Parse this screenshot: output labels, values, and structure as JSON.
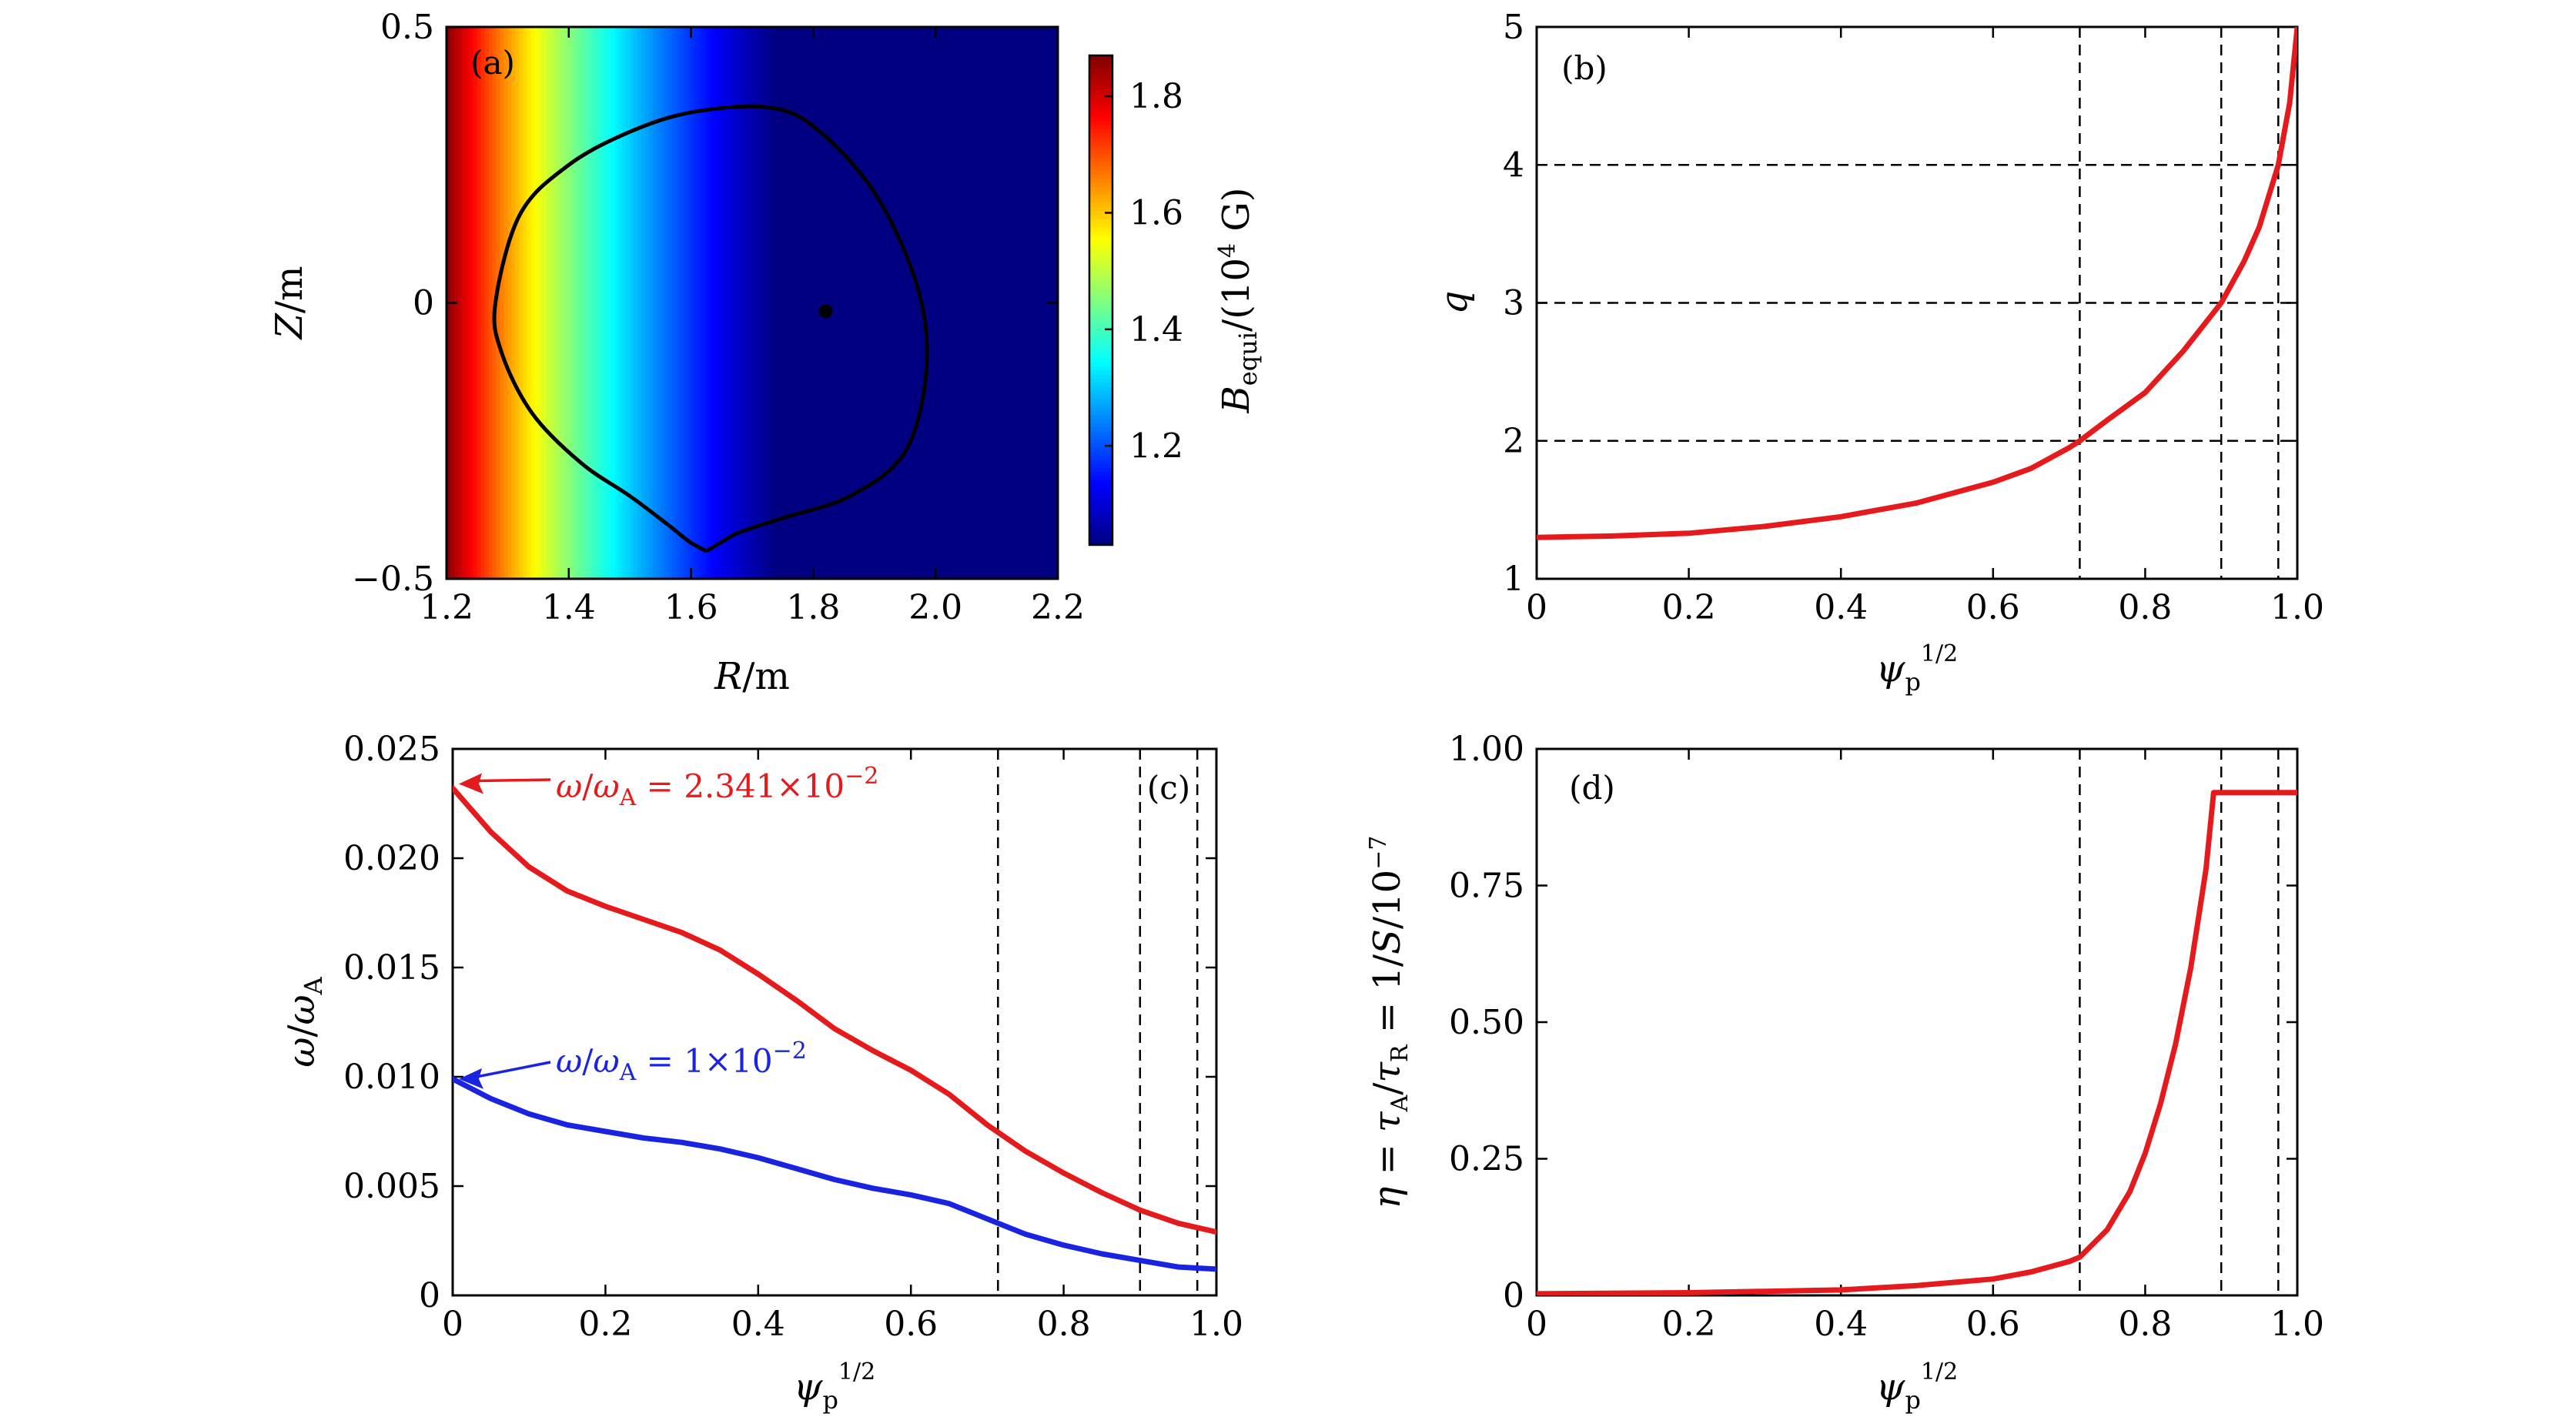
{
  "chart_data": [
    {
      "id": "a",
      "type": "heatmap",
      "panel_label": "(a)",
      "xlabel": "R/m",
      "ylabel": "Z/m",
      "xlim": [
        1.2,
        2.2
      ],
      "ylim": [
        -0.5,
        0.5
      ],
      "xticks": [
        "1.2",
        "1.4",
        "1.6",
        "1.8",
        "2.0",
        "2.2"
      ],
      "yticks": [
        "−0.5",
        "0",
        "0.5"
      ],
      "colorbar": {
        "label": "B_equi/(10^4 G)",
        "range": [
          1.03,
          1.87
        ],
        "ticks": [
          "1.2",
          "1.4",
          "1.6",
          "1.8"
        ]
      },
      "field_model": "B ≈ 1.865·(1.2/R)^1.6, varying with R only",
      "boundary": {
        "R": [
          1.625,
          1.67,
          1.75,
          1.86,
          1.95,
          1.985,
          1.97,
          1.9,
          1.8,
          1.72,
          1.6,
          1.5,
          1.4,
          1.32,
          1.28,
          1.29,
          1.34,
          1.42,
          1.5,
          1.56,
          1.6,
          1.625
        ],
        "Z": [
          -0.45,
          -0.42,
          -0.39,
          -0.35,
          -0.27,
          -0.12,
          0.03,
          0.2,
          0.32,
          0.355,
          0.345,
          0.31,
          0.25,
          0.16,
          0.0,
          -0.09,
          -0.2,
          -0.29,
          -0.35,
          -0.4,
          -0.435,
          -0.45
        ]
      },
      "magnetic_axis": {
        "R": 1.82,
        "Z": -0.015
      }
    },
    {
      "id": "b",
      "type": "line",
      "panel_label": "(b)",
      "xlabel": "ψ_p^{1/2}",
      "ylabel": "q",
      "xlim": [
        0,
        1
      ],
      "ylim": [
        1,
        5
      ],
      "xticks": [
        "0",
        "0.2",
        "0.4",
        "0.6",
        "0.8",
        "1.0"
      ],
      "yticks": [
        "1",
        "2",
        "3",
        "4",
        "5"
      ],
      "series": [
        {
          "name": "q",
          "color": "#e41a1c",
          "x": [
            0,
            0.1,
            0.2,
            0.3,
            0.4,
            0.5,
            0.6,
            0.65,
            0.7,
            0.714,
            0.75,
            0.8,
            0.85,
            0.9,
            0.93,
            0.95,
            0.975,
            0.99,
            1.0
          ],
          "y": [
            1.3,
            1.31,
            1.33,
            1.38,
            1.45,
            1.55,
            1.7,
            1.8,
            1.95,
            2.0,
            2.15,
            2.35,
            2.65,
            3.0,
            3.3,
            3.55,
            4.0,
            4.45,
            5.0
          ]
        }
      ],
      "vlines": [
        0.714,
        0.9,
        0.975
      ],
      "hlines": [
        2,
        3,
        4
      ]
    },
    {
      "id": "c",
      "type": "line",
      "panel_label": "(c)",
      "xlabel": "ψ_p^{1/2}",
      "ylabel": "ω/ω_A",
      "xlim": [
        0,
        1
      ],
      "ylim": [
        0,
        0.025
      ],
      "xticks": [
        "0",
        "0.2",
        "0.4",
        "0.6",
        "0.8",
        "1.0"
      ],
      "yticks": [
        "0",
        "0.005",
        "0.010",
        "0.015",
        "0.020",
        "0.025"
      ],
      "series": [
        {
          "name": "ω/ω_A = 2.341×10^−2",
          "color": "#e41a1c",
          "x": [
            0,
            0.05,
            0.1,
            0.15,
            0.2,
            0.25,
            0.3,
            0.35,
            0.4,
            0.45,
            0.5,
            0.55,
            0.6,
            0.65,
            0.7,
            0.75,
            0.8,
            0.85,
            0.9,
            0.95,
            1.0
          ],
          "y": [
            0.0232,
            0.0212,
            0.0196,
            0.0185,
            0.0178,
            0.0172,
            0.0166,
            0.0158,
            0.0147,
            0.0135,
            0.0122,
            0.0112,
            0.0103,
            0.0092,
            0.0078,
            0.0066,
            0.0056,
            0.0047,
            0.0039,
            0.0033,
            0.0029
          ]
        },
        {
          "name": "ω/ω_A = 1×10^−2",
          "color": "#1a24e0",
          "x": [
            0,
            0.05,
            0.1,
            0.15,
            0.2,
            0.25,
            0.3,
            0.35,
            0.4,
            0.45,
            0.5,
            0.55,
            0.6,
            0.65,
            0.7,
            0.75,
            0.8,
            0.85,
            0.9,
            0.95,
            1.0
          ],
          "y": [
            0.0099,
            0.009,
            0.0083,
            0.0078,
            0.0075,
            0.0072,
            0.007,
            0.0067,
            0.0063,
            0.0058,
            0.0053,
            0.0049,
            0.0046,
            0.0042,
            0.0035,
            0.0028,
            0.0023,
            0.0019,
            0.0016,
            0.0013,
            0.0012
          ]
        }
      ],
      "annotations": [
        {
          "text": "ω/ω_A = 2.341×10^−2",
          "points_to": [
            0,
            0.0234
          ]
        },
        {
          "text": "ω/ω_A = 1×10^−2",
          "points_to": [
            0,
            0.0099
          ]
        }
      ],
      "vlines": [
        0.714,
        0.9,
        0.975
      ]
    },
    {
      "id": "d",
      "type": "line",
      "panel_label": "(d)",
      "xlabel": "ψ_p^{1/2}",
      "ylabel": "η = τ_A/τ_R = 1/S/10^−7",
      "xlim": [
        0,
        1
      ],
      "ylim": [
        0,
        1
      ],
      "xticks": [
        "0",
        "0.2",
        "0.4",
        "0.6",
        "0.8",
        "1.0"
      ],
      "yticks": [
        "0",
        "0.25",
        "0.50",
        "0.75",
        "1.00"
      ],
      "series": [
        {
          "name": "η",
          "color": "#e41a1c",
          "x": [
            0,
            0.2,
            0.4,
            0.5,
            0.6,
            0.65,
            0.7,
            0.714,
            0.75,
            0.78,
            0.8,
            0.82,
            0.84,
            0.86,
            0.88,
            0.89,
            0.9,
            0.95,
            1.0
          ],
          "y": [
            0.003,
            0.005,
            0.01,
            0.018,
            0.03,
            0.043,
            0.062,
            0.07,
            0.12,
            0.19,
            0.26,
            0.35,
            0.46,
            0.6,
            0.78,
            0.92,
            0.92,
            0.92,
            0.92
          ]
        }
      ],
      "vlines": [
        0.714,
        0.9,
        0.975
      ]
    }
  ]
}
